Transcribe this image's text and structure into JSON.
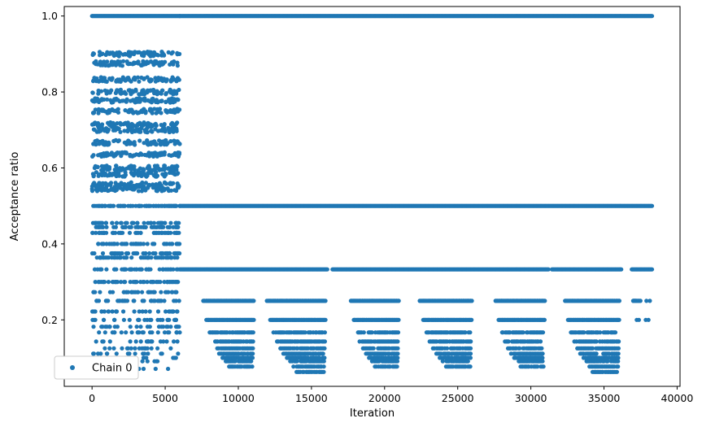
{
  "chart_data": {
    "type": "scatter",
    "title": "",
    "xlabel": "Iteration",
    "ylabel": "Acceptance ratio",
    "xlim": [
      -1900,
      40200
    ],
    "ylim": [
      0.025,
      1.025
    ],
    "x_ticks": [
      0,
      5000,
      10000,
      15000,
      20000,
      25000,
      30000,
      35000,
      40000
    ],
    "x_tick_labels": [
      "0",
      "5000",
      "10000",
      "15000",
      "20000",
      "25000",
      "30000",
      "35000",
      "40000"
    ],
    "y_ticks": [
      0.2,
      0.4,
      0.6,
      0.8,
      1.0
    ],
    "y_tick_labels": [
      "0.2",
      "0.4",
      "0.6",
      "0.8",
      "1.0"
    ],
    "grid": false,
    "legend_position": "lower-left",
    "marker_color": "#1f77b4",
    "series": [
      {
        "name": "Chain 0",
        "segments": [
          {
            "x_range": [
              0,
              6000
            ],
            "y_levels": [
              1.0
            ],
            "density": "dense"
          },
          {
            "x_range": [
              0,
              6000
            ],
            "y_levels": [
              0.9,
              0.875,
              0.833,
              0.8,
              0.778,
              0.75,
              0.714,
              0.7,
              0.667,
              0.636,
              0.6,
              0.583,
              0.556,
              0.545,
              0.5,
              0.455,
              0.444,
              0.429,
              0.4,
              0.375,
              0.364,
              0.333,
              0.3,
              0.273,
              0.25,
              0.222,
              0.2,
              0.182,
              0.167,
              0.143,
              0.125,
              0.111,
              0.1,
              0.091,
              0.071
            ],
            "density": "dense band"
          },
          {
            "x_range": [
              6000,
              38300
            ],
            "y_levels": [
              1.0,
              0.5,
              0.333
            ],
            "density": "continuous"
          },
          {
            "x_range": [
              7200,
              11100
            ],
            "y_levels": [
              0.25,
              0.2,
              0.167,
              0.143,
              0.125,
              0.111,
              0.1,
              0.091,
              0.077
            ],
            "density": "burst"
          },
          {
            "x_range": [
              11500,
              16000
            ],
            "y_levels": [
              0.25,
              0.2,
              0.167,
              0.143,
              0.125,
              0.111,
              0.1,
              0.091,
              0.077,
              0.063
            ],
            "density": "burst"
          },
          {
            "x_range": [
              17300,
              21000
            ],
            "y_levels": [
              0.25,
              0.2,
              0.167,
              0.143,
              0.125,
              0.111,
              0.1,
              0.091,
              0.077
            ],
            "density": "burst"
          },
          {
            "x_range": [
              22000,
              26000
            ],
            "y_levels": [
              0.25,
              0.2,
              0.167,
              0.143,
              0.125,
              0.111,
              0.1,
              0.091,
              0.077
            ],
            "density": "burst"
          },
          {
            "x_range": [
              27200,
              31000
            ],
            "y_levels": [
              0.25,
              0.2,
              0.167,
              0.143,
              0.125,
              0.111,
              0.1,
              0.091,
              0.077
            ],
            "density": "burst"
          },
          {
            "x_range": [
              31900,
              36100
            ],
            "y_levels": [
              0.25,
              0.2,
              0.167,
              0.143,
              0.125,
              0.111,
              0.1,
              0.091,
              0.077,
              0.063
            ],
            "density": "burst"
          },
          {
            "x_range": [
              36900,
              38300
            ],
            "y_levels": [
              0.25,
              0.2
            ],
            "density": "sparse"
          }
        ]
      }
    ]
  }
}
